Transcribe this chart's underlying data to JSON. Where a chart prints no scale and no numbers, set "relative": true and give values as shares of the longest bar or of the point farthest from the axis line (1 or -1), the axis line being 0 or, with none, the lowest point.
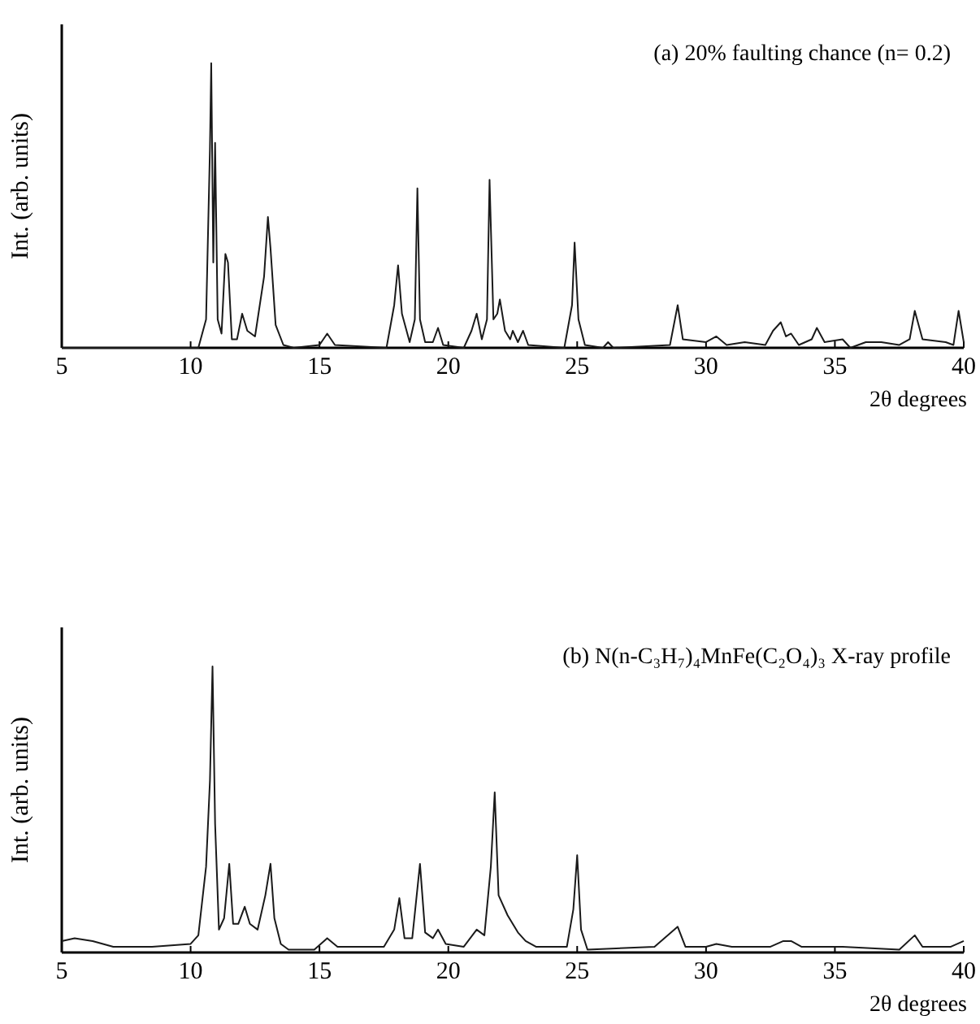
{
  "chart_data": [
    {
      "type": "line",
      "title": "(a)   20% faulting chance  (n= 0.2)",
      "xlabel": "2θ degrees",
      "ylabel": "Int. (arb. units)",
      "relative": true,
      "xlim": [
        5,
        40
      ],
      "xticks": [
        5,
        10,
        15,
        20,
        25,
        30,
        35,
        40
      ],
      "x": [
        5,
        10.3,
        10.6,
        10.75,
        10.8,
        10.88,
        10.95,
        11.05,
        11.2,
        11.35,
        11.45,
        11.6,
        11.8,
        12.0,
        12.2,
        12.5,
        12.85,
        13.0,
        13.1,
        13.3,
        13.6,
        14.0,
        15.0,
        15.3,
        15.6,
        17.6,
        17.9,
        18.05,
        18.2,
        18.5,
        18.7,
        18.8,
        18.9,
        19.1,
        19.4,
        19.6,
        19.8,
        20.6,
        20.9,
        21.1,
        21.3,
        21.5,
        21.6,
        21.75,
        21.9,
        22.0,
        22.2,
        22.4,
        22.5,
        22.7,
        22.9,
        23.1,
        24.5,
        24.8,
        24.9,
        25.05,
        25.3,
        26.0,
        26.2,
        26.4,
        28.6,
        28.9,
        29.1,
        30.0,
        30.4,
        30.8,
        31.5,
        32.3,
        32.6,
        32.9,
        33.1,
        33.3,
        33.6,
        34.1,
        34.3,
        34.6,
        35.3,
        35.6,
        36.2,
        36.8,
        37.5,
        37.9,
        38.1,
        38.4,
        39.3,
        39.6,
        39.8,
        40
      ],
      "series": [
        {
          "color": "#1a1a1a",
          "values": [
            0,
            0,
            0.1,
            0.7,
            1.0,
            0.3,
            0.72,
            0.1,
            0.05,
            0.33,
            0.3,
            0.03,
            0.03,
            0.12,
            0.06,
            0.04,
            0.25,
            0.46,
            0.35,
            0.08,
            0.01,
            0,
            0.01,
            0.05,
            0.01,
            0,
            0.15,
            0.29,
            0.12,
            0.02,
            0.1,
            0.56,
            0.1,
            0.02,
            0.02,
            0.07,
            0.01,
            0,
            0.06,
            0.12,
            0.03,
            0.1,
            0.59,
            0.1,
            0.12,
            0.17,
            0.06,
            0.03,
            0.06,
            0.02,
            0.06,
            0.01,
            0,
            0.15,
            0.37,
            0.1,
            0.01,
            0,
            0.02,
            0,
            0.01,
            0.15,
            0.03,
            0.02,
            0.04,
            0.01,
            0.02,
            0.01,
            0.06,
            0.09,
            0.04,
            0.05,
            0.01,
            0.03,
            0.07,
            0.02,
            0.03,
            0,
            0.02,
            0.02,
            0.01,
            0.03,
            0.13,
            0.03,
            0.02,
            0.01,
            0.13,
            0.02
          ]
        }
      ]
    },
    {
      "type": "line",
      "title": "(b) N(n-C₃H₇)₄MnFe(C₂O₄)₃ X-ray profile",
      "xlabel": "2θ degrees",
      "ylabel": "Int. (arb. units)",
      "relative": true,
      "xlim": [
        5,
        40
      ],
      "xticks": [
        5,
        10,
        15,
        20,
        25,
        30,
        35,
        40
      ],
      "x": [
        5,
        5.5,
        6.2,
        7.0,
        8.5,
        10.0,
        10.3,
        10.6,
        10.75,
        10.85,
        10.95,
        11.1,
        11.3,
        11.5,
        11.65,
        11.85,
        12.1,
        12.3,
        12.6,
        12.9,
        13.1,
        13.25,
        13.5,
        13.8,
        14.8,
        15.3,
        15.7,
        17.5,
        17.9,
        18.1,
        18.3,
        18.6,
        18.9,
        19.1,
        19.4,
        19.6,
        19.9,
        20.6,
        21.1,
        21.4,
        21.65,
        21.8,
        21.95,
        22.3,
        22.7,
        23.0,
        23.4,
        24.6,
        24.85,
        25.0,
        25.15,
        25.4,
        28.0,
        28.9,
        29.2,
        30.0,
        30.4,
        31.0,
        31.8,
        32.5,
        33.0,
        33.3,
        33.7,
        34.8,
        35.3,
        37.5,
        38.1,
        38.4,
        39.5,
        40
      ],
      "series": [
        {
          "color": "#1a1a1a",
          "values": [
            0.04,
            0.05,
            0.04,
            0.02,
            0.02,
            0.03,
            0.06,
            0.3,
            0.6,
            1.0,
            0.45,
            0.08,
            0.12,
            0.31,
            0.1,
            0.1,
            0.16,
            0.1,
            0.08,
            0.2,
            0.31,
            0.12,
            0.03,
            0.01,
            0.01,
            0.05,
            0.02,
            0.02,
            0.08,
            0.19,
            0.05,
            0.05,
            0.31,
            0.07,
            0.05,
            0.08,
            0.03,
            0.02,
            0.08,
            0.06,
            0.3,
            0.56,
            0.2,
            0.13,
            0.07,
            0.04,
            0.02,
            0.02,
            0.15,
            0.34,
            0.08,
            0.01,
            0.02,
            0.09,
            0.02,
            0.02,
            0.03,
            0.02,
            0.02,
            0.02,
            0.04,
            0.04,
            0.02,
            0.02,
            0.02,
            0.01,
            0.06,
            0.02,
            0.02,
            0.04
          ]
        }
      ]
    }
  ]
}
